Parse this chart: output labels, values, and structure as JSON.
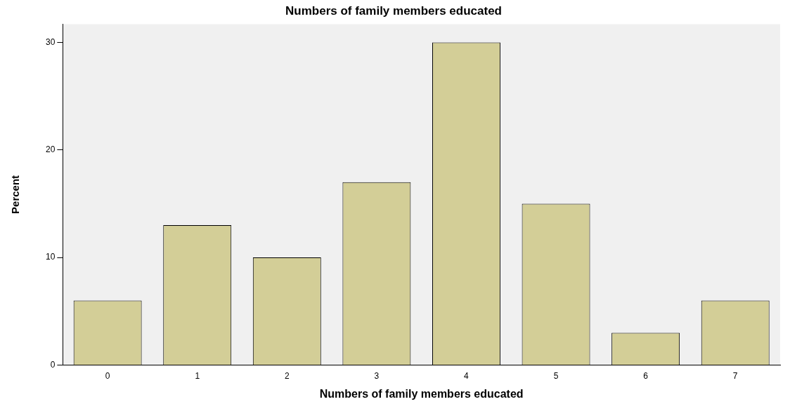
{
  "chart_data": {
    "type": "bar",
    "title": "Numbers of family members educated",
    "xlabel": "Numbers of family members educated",
    "ylabel": "Percent",
    "categories": [
      "0",
      "1",
      "2",
      "3",
      "4",
      "5",
      "6",
      "7"
    ],
    "values": [
      6,
      13,
      10,
      17,
      30,
      15,
      3,
      6
    ],
    "color": "#d3ce97",
    "ylim": [
      0,
      31.7
    ],
    "yticks": [
      0,
      10,
      20,
      30
    ],
    "grid": false,
    "legend": false
  }
}
